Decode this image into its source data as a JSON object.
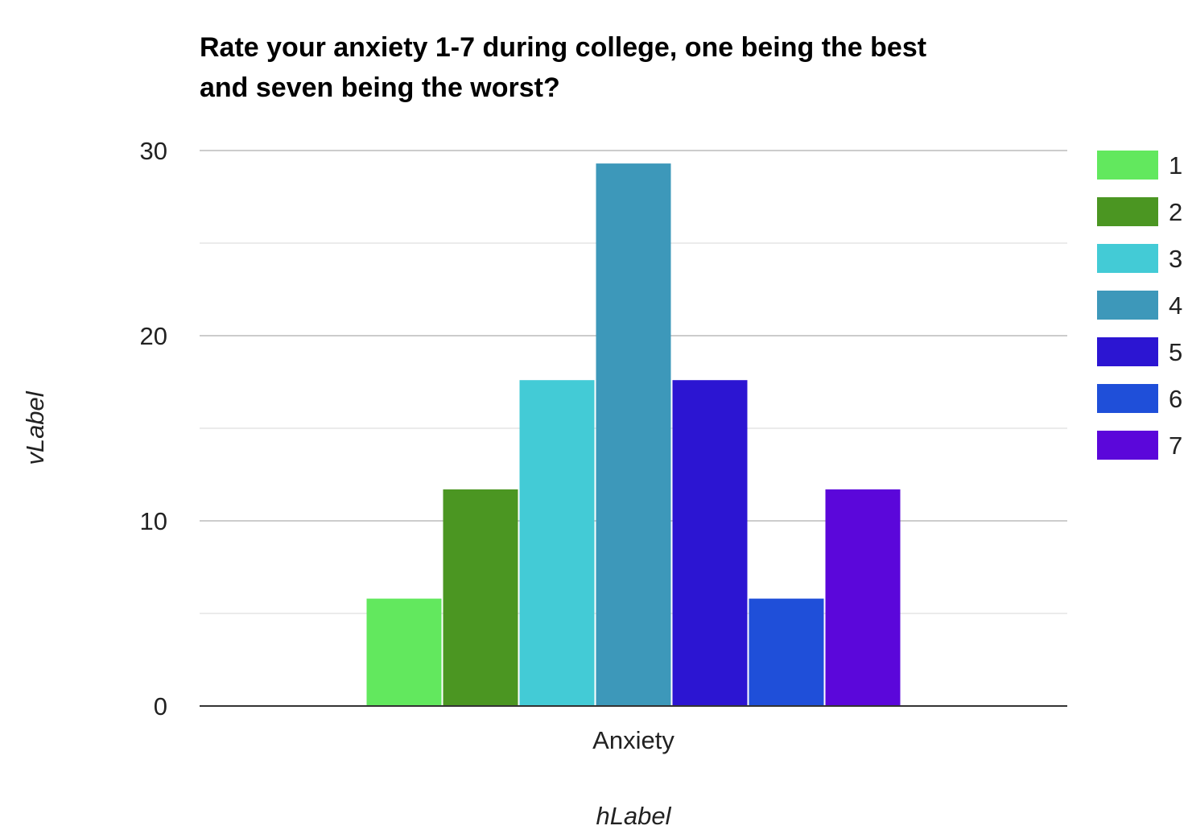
{
  "chart_data": {
    "type": "bar",
    "title_lines": [
      "Rate your anxiety 1-7 during college, one being the best",
      "and seven being the worst?"
    ],
    "categories": [
      "Anxiety"
    ],
    "series": [
      {
        "name": "1",
        "values": [
          5.8
        ],
        "color": "#62e85e"
      },
      {
        "name": "2",
        "values": [
          11.7
        ],
        "color": "#4b9622"
      },
      {
        "name": "3",
        "values": [
          17.6
        ],
        "color": "#43cbd6"
      },
      {
        "name": "4",
        "values": [
          29.3
        ],
        "color": "#3d98ba"
      },
      {
        "name": "5",
        "values": [
          17.6
        ],
        "color": "#2c15d2"
      },
      {
        "name": "6",
        "values": [
          5.8
        ],
        "color": "#1f4fd9"
      },
      {
        "name": "7",
        "values": [
          11.7
        ],
        "color": "#5b07da"
      }
    ],
    "xlabel": "hLabel",
    "ylabel": "vLabel",
    "ylim": [
      0,
      30
    ],
    "yticks": [
      "0",
      "10",
      "20",
      "30"
    ],
    "grid": true,
    "legend_position": "right"
  }
}
